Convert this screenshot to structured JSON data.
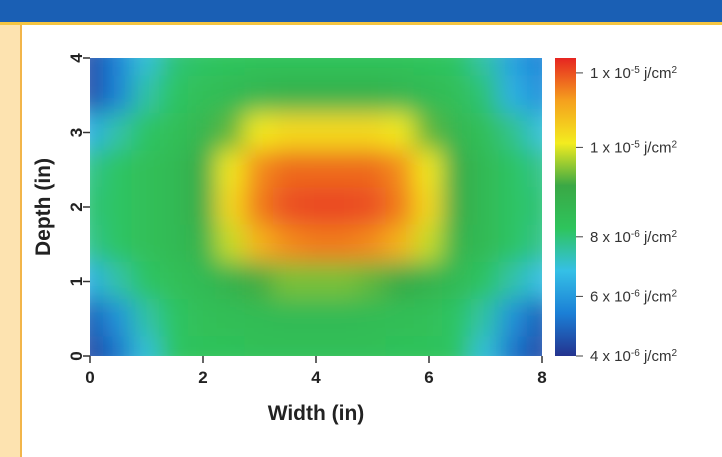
{
  "colors": {
    "header_bar": "#1a5fb4",
    "header_border": "#f5c542",
    "side_strip": "#fde3b0",
    "side_strip_border": "#f2b54a"
  },
  "chart_data": {
    "type": "heatmap",
    "title": "",
    "xlabel": "Width (in)",
    "ylabel": "Depth (in)",
    "xlim": [
      0,
      8
    ],
    "ylim": [
      0,
      4
    ],
    "x_ticks": [
      0,
      2,
      4,
      6,
      8
    ],
    "y_ticks": [
      0,
      1,
      2,
      3,
      4
    ],
    "grid": false,
    "colormap": [
      "#24338f",
      "#1b7fd6",
      "#35c0e6",
      "#2ec45c",
      "#3aa845",
      "#f3ec1f",
      "#f5a01e",
      "#e62521"
    ],
    "colorbar": {
      "units": "j/cm²",
      "range": [
        4e-06,
        1.4e-05
      ],
      "labels": [
        {
          "value": 1.35e-05,
          "mantissa": "1 x 10",
          "exp": "-5",
          "unit": " j/cm",
          "unit_exp": "2"
        },
        {
          "value": 1.1e-05,
          "mantissa": "1 x 10",
          "exp": "-5",
          "unit": " j/cm",
          "unit_exp": "2"
        },
        {
          "value": 8e-06,
          "mantissa": "8 x 10",
          "exp": "-6",
          "unit": " j/cm",
          "unit_exp": "2"
        },
        {
          "value": 6e-06,
          "mantissa": "6 x 10",
          "exp": "-6",
          "unit": " j/cm",
          "unit_exp": "2"
        },
        {
          "value": 4e-06,
          "mantissa": "4 x 10",
          "exp": "-6",
          "unit": " j/cm",
          "unit_exp": "2"
        }
      ]
    },
    "x": [
      0,
      0.5,
      1,
      1.5,
      2,
      2.5,
      3,
      3.5,
      4,
      4.5,
      5,
      5.5,
      6,
      6.5,
      7,
      7.5,
      8
    ],
    "y": [
      4,
      3.5,
      3,
      2.5,
      2,
      1.5,
      1,
      0.5,
      0
    ],
    "z_scale": "relative fluence 0 (min) to 1 (max), spanning colorbar range",
    "z": [
      [
        0.05,
        0.15,
        0.3,
        0.4,
        0.42,
        0.43,
        0.44,
        0.44,
        0.44,
        0.44,
        0.44,
        0.44,
        0.43,
        0.42,
        0.35,
        0.22,
        0.15
      ],
      [
        0.05,
        0.15,
        0.35,
        0.42,
        0.45,
        0.48,
        0.5,
        0.52,
        0.52,
        0.52,
        0.52,
        0.5,
        0.48,
        0.45,
        0.4,
        0.25,
        0.18
      ],
      [
        0.25,
        0.35,
        0.42,
        0.45,
        0.5,
        0.6,
        0.72,
        0.75,
        0.75,
        0.75,
        0.75,
        0.72,
        0.6,
        0.5,
        0.45,
        0.38,
        0.3
      ],
      [
        0.38,
        0.42,
        0.45,
        0.48,
        0.55,
        0.72,
        0.88,
        0.92,
        0.92,
        0.92,
        0.92,
        0.88,
        0.72,
        0.55,
        0.48,
        0.42,
        0.38
      ],
      [
        0.4,
        0.42,
        0.45,
        0.48,
        0.55,
        0.75,
        0.9,
        0.95,
        0.96,
        0.96,
        0.95,
        0.9,
        0.75,
        0.55,
        0.48,
        0.42,
        0.4
      ],
      [
        0.38,
        0.42,
        0.45,
        0.48,
        0.52,
        0.68,
        0.82,
        0.88,
        0.9,
        0.9,
        0.88,
        0.82,
        0.68,
        0.52,
        0.48,
        0.42,
        0.38
      ],
      [
        0.25,
        0.35,
        0.42,
        0.45,
        0.48,
        0.52,
        0.58,
        0.62,
        0.62,
        0.62,
        0.6,
        0.56,
        0.52,
        0.48,
        0.42,
        0.35,
        0.28
      ],
      [
        0.08,
        0.18,
        0.35,
        0.42,
        0.45,
        0.46,
        0.47,
        0.48,
        0.48,
        0.48,
        0.47,
        0.46,
        0.45,
        0.42,
        0.35,
        0.18,
        0.08
      ],
      [
        0.04,
        0.12,
        0.3,
        0.42,
        0.44,
        0.44,
        0.45,
        0.45,
        0.45,
        0.45,
        0.45,
        0.44,
        0.44,
        0.42,
        0.3,
        0.12,
        0.05
      ]
    ]
  }
}
